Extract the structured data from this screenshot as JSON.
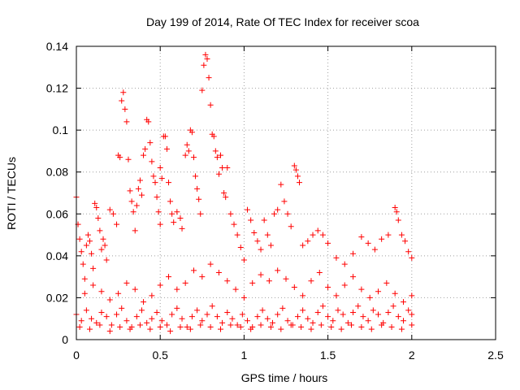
{
  "chart_data": {
    "type": "scatter",
    "title": "Day 199 of 2014, Rate Of TEC Index for receiver scoa",
    "xlabel": "GPS time / hours",
    "ylabel": "ROTI / TECUs",
    "xlim": [
      0,
      2.5
    ],
    "ylim": [
      0,
      0.14
    ],
    "x_ticks": [
      "0",
      "0.5",
      "1",
      "1.5",
      "2",
      "2.5"
    ],
    "y_ticks": [
      "0",
      "0.02",
      "0.04",
      "0.06",
      "0.08",
      "0.1",
      "0.12",
      "0.14"
    ],
    "x_tick_values": [
      0,
      0.5,
      1,
      1.5,
      2,
      2.5
    ],
    "y_tick_values": [
      0,
      0.02,
      0.04,
      0.06,
      0.08,
      0.1,
      0.12,
      0.14
    ],
    "grid": true,
    "marker": "+",
    "marker_color": "#ff0000",
    "series": [
      {
        "name": "ROTI",
        "points": [
          [
            0.0,
            0.068
          ],
          [
            0.01,
            0.055
          ],
          [
            0.02,
            0.048
          ],
          [
            0.03,
            0.042
          ],
          [
            0.04,
            0.036
          ],
          [
            0.05,
            0.029
          ],
          [
            0.06,
            0.045
          ],
          [
            0.07,
            0.05
          ],
          [
            0.08,
            0.047
          ],
          [
            0.09,
            0.041
          ],
          [
            0.1,
            0.034
          ],
          [
            0.11,
            0.065
          ],
          [
            0.12,
            0.063
          ],
          [
            0.13,
            0.058
          ],
          [
            0.14,
            0.052
          ],
          [
            0.15,
            0.043
          ],
          [
            0.16,
            0.048
          ],
          [
            0.17,
            0.045
          ],
          [
            0.18,
            0.038
          ],
          [
            0.2,
            0.062
          ],
          [
            0.22,
            0.06
          ],
          [
            0.24,
            0.055
          ],
          [
            0.25,
            0.088
          ],
          [
            0.26,
            0.087
          ],
          [
            0.27,
            0.114
          ],
          [
            0.28,
            0.118
          ],
          [
            0.29,
            0.11
          ],
          [
            0.3,
            0.104
          ],
          [
            0.31,
            0.086
          ],
          [
            0.32,
            0.071
          ],
          [
            0.33,
            0.066
          ],
          [
            0.34,
            0.061
          ],
          [
            0.35,
            0.052
          ],
          [
            0.36,
            0.064
          ],
          [
            0.37,
            0.072
          ],
          [
            0.38,
            0.076
          ],
          [
            0.39,
            0.069
          ],
          [
            0.4,
            0.088
          ],
          [
            0.41,
            0.091
          ],
          [
            0.42,
            0.105
          ],
          [
            0.43,
            0.104
          ],
          [
            0.44,
            0.094
          ],
          [
            0.45,
            0.085
          ],
          [
            0.46,
            0.078
          ],
          [
            0.47,
            0.075
          ],
          [
            0.48,
            0.068
          ],
          [
            0.49,
            0.061
          ],
          [
            0.5,
            0.055
          ],
          [
            0.5,
            0.082
          ],
          [
            0.51,
            0.077
          ],
          [
            0.52,
            0.097
          ],
          [
            0.53,
            0.097
          ],
          [
            0.54,
            0.091
          ],
          [
            0.55,
            0.075
          ],
          [
            0.56,
            0.066
          ],
          [
            0.57,
            0.06
          ],
          [
            0.58,
            0.056
          ],
          [
            0.6,
            0.061
          ],
          [
            0.62,
            0.058
          ],
          [
            0.63,
            0.053
          ],
          [
            0.65,
            0.088
          ],
          [
            0.66,
            0.093
          ],
          [
            0.67,
            0.09
          ],
          [
            0.68,
            0.1
          ],
          [
            0.69,
            0.099
          ],
          [
            0.7,
            0.087
          ],
          [
            0.71,
            0.078
          ],
          [
            0.72,
            0.072
          ],
          [
            0.73,
            0.067
          ],
          [
            0.74,
            0.06
          ],
          [
            0.75,
            0.119
          ],
          [
            0.76,
            0.131
          ],
          [
            0.77,
            0.136
          ],
          [
            0.78,
            0.134
          ],
          [
            0.79,
            0.125
          ],
          [
            0.8,
            0.112
          ],
          [
            0.81,
            0.098
          ],
          [
            0.82,
            0.097
          ],
          [
            0.83,
            0.09
          ],
          [
            0.84,
            0.087
          ],
          [
            0.85,
            0.079
          ],
          [
            0.86,
            0.088
          ],
          [
            0.87,
            0.082
          ],
          [
            0.88,
            0.07
          ],
          [
            0.89,
            0.068
          ],
          [
            0.9,
            0.082
          ],
          [
            0.92,
            0.06
          ],
          [
            0.94,
            0.055
          ],
          [
            0.96,
            0.05
          ],
          [
            0.98,
            0.044
          ],
          [
            1.0,
            0.038
          ],
          [
            1.02,
            0.062
          ],
          [
            1.04,
            0.057
          ],
          [
            1.06,
            0.051
          ],
          [
            1.08,
            0.047
          ],
          [
            1.1,
            0.043
          ],
          [
            1.12,
            0.057
          ],
          [
            1.14,
            0.05
          ],
          [
            1.16,
            0.045
          ],
          [
            1.18,
            0.06
          ],
          [
            1.2,
            0.062
          ],
          [
            1.22,
            0.074
          ],
          [
            1.24,
            0.066
          ],
          [
            1.26,
            0.06
          ],
          [
            1.28,
            0.054
          ],
          [
            1.3,
            0.083
          ],
          [
            1.31,
            0.081
          ],
          [
            1.32,
            0.078
          ],
          [
            1.33,
            0.075
          ],
          [
            1.35,
            0.045
          ],
          [
            1.38,
            0.047
          ],
          [
            1.41,
            0.05
          ],
          [
            1.44,
            0.052
          ],
          [
            1.47,
            0.05
          ],
          [
            1.5,
            0.046
          ],
          [
            1.55,
            0.039
          ],
          [
            1.6,
            0.036
          ],
          [
            1.65,
            0.041
          ],
          [
            1.7,
            0.049
          ],
          [
            1.74,
            0.046
          ],
          [
            1.78,
            0.043
          ],
          [
            1.82,
            0.048
          ],
          [
            1.86,
            0.05
          ],
          [
            1.9,
            0.063
          ],
          [
            1.91,
            0.061
          ],
          [
            1.92,
            0.057
          ],
          [
            1.94,
            0.05
          ],
          [
            1.96,
            0.047
          ],
          [
            1.98,
            0.042
          ],
          [
            2.0,
            0.039
          ],
          [
            0.05,
            0.022
          ],
          [
            0.1,
            0.026
          ],
          [
            0.15,
            0.023
          ],
          [
            0.2,
            0.019
          ],
          [
            0.25,
            0.022
          ],
          [
            0.3,
            0.027
          ],
          [
            0.35,
            0.024
          ],
          [
            0.4,
            0.018
          ],
          [
            0.45,
            0.021
          ],
          [
            0.5,
            0.026
          ],
          [
            0.55,
            0.03
          ],
          [
            0.6,
            0.024
          ],
          [
            0.65,
            0.027
          ],
          [
            0.7,
            0.033
          ],
          [
            0.75,
            0.03
          ],
          [
            0.8,
            0.036
          ],
          [
            0.85,
            0.032
          ],
          [
            0.9,
            0.028
          ],
          [
            0.95,
            0.024
          ],
          [
            1.0,
            0.02
          ],
          [
            1.05,
            0.027
          ],
          [
            1.1,
            0.031
          ],
          [
            1.15,
            0.028
          ],
          [
            1.2,
            0.033
          ],
          [
            1.25,
            0.029
          ],
          [
            1.3,
            0.025
          ],
          [
            1.35,
            0.021
          ],
          [
            1.4,
            0.028
          ],
          [
            1.45,
            0.032
          ],
          [
            1.5,
            0.025
          ],
          [
            1.55,
            0.021
          ],
          [
            1.6,
            0.026
          ],
          [
            1.65,
            0.03
          ],
          [
            1.7,
            0.024
          ],
          [
            1.75,
            0.02
          ],
          [
            1.8,
            0.023
          ],
          [
            1.85,
            0.027
          ],
          [
            1.9,
            0.022
          ],
          [
            1.95,
            0.018
          ],
          [
            2.0,
            0.021
          ],
          [
            0.0,
            0.012
          ],
          [
            0.03,
            0.009
          ],
          [
            0.06,
            0.014
          ],
          [
            0.09,
            0.01
          ],
          [
            0.12,
            0.008
          ],
          [
            0.15,
            0.013
          ],
          [
            0.18,
            0.011
          ],
          [
            0.21,
            0.007
          ],
          [
            0.24,
            0.012
          ],
          [
            0.27,
            0.015
          ],
          [
            0.3,
            0.009
          ],
          [
            0.33,
            0.006
          ],
          [
            0.36,
            0.011
          ],
          [
            0.39,
            0.014
          ],
          [
            0.42,
            0.008
          ],
          [
            0.45,
            0.01
          ],
          [
            0.48,
            0.013
          ],
          [
            0.51,
            0.009
          ],
          [
            0.54,
            0.007
          ],
          [
            0.57,
            0.012
          ],
          [
            0.6,
            0.015
          ],
          [
            0.63,
            0.01
          ],
          [
            0.66,
            0.006
          ],
          [
            0.69,
            0.011
          ],
          [
            0.72,
            0.014
          ],
          [
            0.75,
            0.009
          ],
          [
            0.78,
            0.012
          ],
          [
            0.81,
            0.016
          ],
          [
            0.84,
            0.011
          ],
          [
            0.87,
            0.008
          ],
          [
            0.9,
            0.013
          ],
          [
            0.93,
            0.01
          ],
          [
            0.96,
            0.007
          ],
          [
            0.99,
            0.012
          ],
          [
            1.02,
            0.009
          ],
          [
            1.05,
            0.006
          ],
          [
            1.08,
            0.011
          ],
          [
            1.11,
            0.014
          ],
          [
            1.14,
            0.01
          ],
          [
            1.17,
            0.008
          ],
          [
            1.2,
            0.012
          ],
          [
            1.23,
            0.015
          ],
          [
            1.26,
            0.009
          ],
          [
            1.29,
            0.007
          ],
          [
            1.32,
            0.011
          ],
          [
            1.35,
            0.014
          ],
          [
            1.38,
            0.01
          ],
          [
            1.41,
            0.008
          ],
          [
            1.44,
            0.013
          ],
          [
            1.47,
            0.016
          ],
          [
            1.5,
            0.011
          ],
          [
            1.53,
            0.009
          ],
          [
            1.56,
            0.014
          ],
          [
            1.59,
            0.012
          ],
          [
            1.62,
            0.008
          ],
          [
            1.65,
            0.013
          ],
          [
            1.68,
            0.016
          ],
          [
            1.71,
            0.011
          ],
          [
            1.74,
            0.009
          ],
          [
            1.77,
            0.014
          ],
          [
            1.8,
            0.012
          ],
          [
            1.83,
            0.008
          ],
          [
            1.86,
            0.013
          ],
          [
            1.89,
            0.016
          ],
          [
            1.92,
            0.011
          ],
          [
            1.95,
            0.009
          ],
          [
            1.98,
            0.014
          ],
          [
            2.0,
            0.012
          ],
          [
            0.02,
            0.006
          ],
          [
            0.08,
            0.005
          ],
          [
            0.14,
            0.007
          ],
          [
            0.2,
            0.004
          ],
          [
            0.26,
            0.006
          ],
          [
            0.32,
            0.005
          ],
          [
            0.38,
            0.007
          ],
          [
            0.44,
            0.005
          ],
          [
            0.5,
            0.006
          ],
          [
            0.56,
            0.004
          ],
          [
            0.62,
            0.006
          ],
          [
            0.68,
            0.005
          ],
          [
            0.74,
            0.007
          ],
          [
            0.8,
            0.006
          ],
          [
            0.86,
            0.005
          ],
          [
            0.92,
            0.007
          ],
          [
            0.98,
            0.006
          ],
          [
            1.04,
            0.005
          ],
          [
            1.1,
            0.007
          ],
          [
            1.16,
            0.006
          ],
          [
            1.22,
            0.005
          ],
          [
            1.28,
            0.007
          ],
          [
            1.34,
            0.006
          ],
          [
            1.4,
            0.005
          ],
          [
            1.46,
            0.007
          ],
          [
            1.52,
            0.006
          ],
          [
            1.58,
            0.005
          ],
          [
            1.64,
            0.007
          ],
          [
            1.7,
            0.006
          ],
          [
            1.76,
            0.005
          ],
          [
            1.82,
            0.007
          ],
          [
            1.88,
            0.006
          ],
          [
            1.94,
            0.005
          ],
          [
            2.0,
            0.007
          ]
        ]
      }
    ]
  }
}
